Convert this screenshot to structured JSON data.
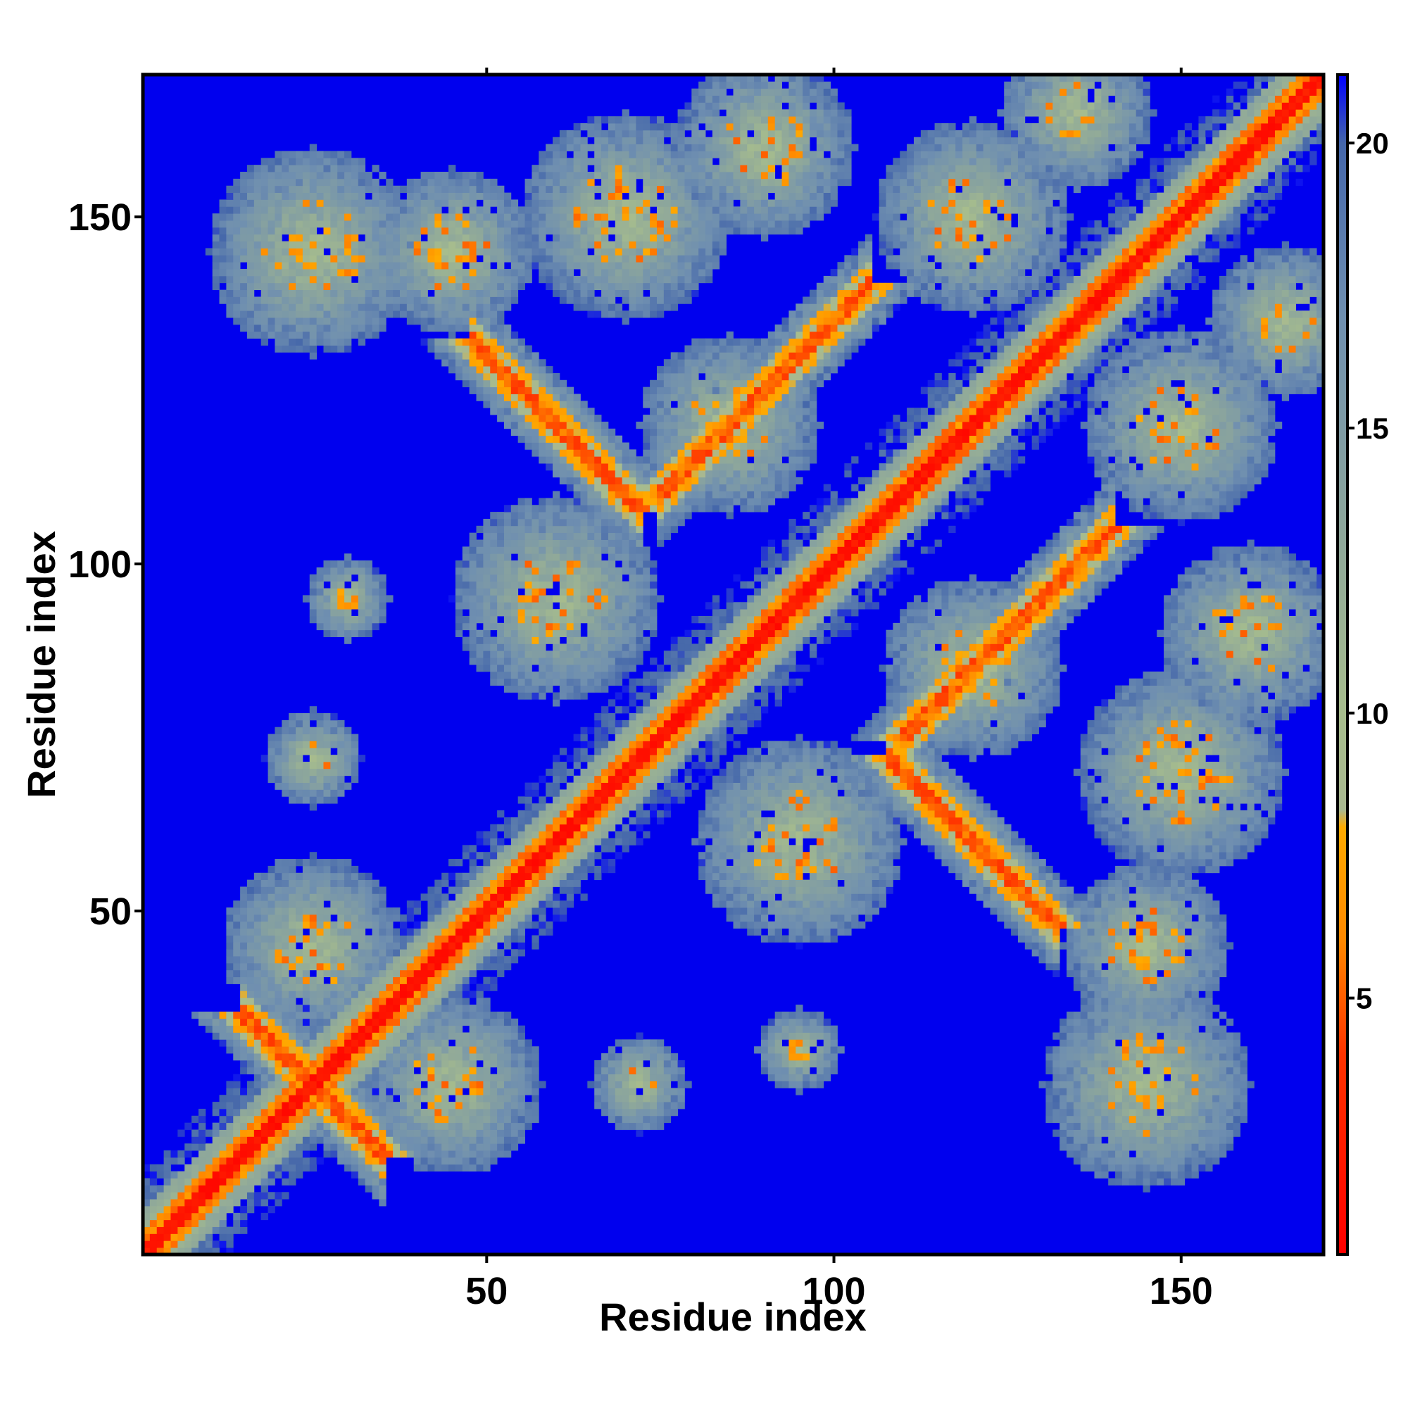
{
  "chart_data": {
    "type": "heatmap",
    "title": "",
    "xlabel": "Residue index",
    "ylabel": "Residue index",
    "n_residues": 170,
    "xlim": [
      1,
      170
    ],
    "ylim": [
      1,
      170
    ],
    "x_ticks": [
      50,
      100,
      150
    ],
    "y_ticks": [
      50,
      100,
      150
    ],
    "colorbar": {
      "ticks": [
        5,
        10,
        15,
        20
      ],
      "range": [
        0.5,
        21.2
      ],
      "stops": [
        {
          "value": 0.5,
          "color": "#ff0000"
        },
        {
          "value": 4.0,
          "color": "#ff3300"
        },
        {
          "value": 6.0,
          "color": "#ff8800"
        },
        {
          "value": 8.0,
          "color": "#ffaa00"
        },
        {
          "value": 8.3,
          "color": "#a8b890"
        },
        {
          "value": 10.0,
          "color": "#a7bd8d"
        },
        {
          "value": 13.0,
          "color": "#8fa89a"
        },
        {
          "value": 17.0,
          "color": "#6f8fb0"
        },
        {
          "value": 20.0,
          "color": "#4466aa"
        },
        {
          "value": 21.2,
          "color": "#0000ff"
        }
      ]
    },
    "background_value": 21,
    "background_color": "#0000ee",
    "contact_features": [
      {
        "kind": "diagonal",
        "from": 1,
        "to": 170,
        "width": 6
      },
      {
        "kind": "antiparallel",
        "center": [
          25,
          25
        ],
        "length": 10,
        "width": 3
      },
      {
        "kind": "antiparallel",
        "center": [
          60,
          120
        ],
        "length": 12,
        "width": 3
      },
      {
        "kind": "antiparallel",
        "center": [
          120,
          60
        ],
        "length": 12,
        "width": 3
      },
      {
        "kind": "parallel",
        "center": [
          90,
          125
        ],
        "length": 15,
        "width": 3
      },
      {
        "kind": "parallel",
        "center": [
          125,
          90
        ],
        "length": 15,
        "width": 3
      },
      {
        "kind": "cluster",
        "center": [
          25,
          145
        ],
        "radius": 12
      },
      {
        "kind": "cluster",
        "center": [
          145,
          25
        ],
        "radius": 12
      },
      {
        "kind": "cluster",
        "center": [
          45,
          145
        ],
        "radius": 9
      },
      {
        "kind": "cluster",
        "center": [
          145,
          45
        ],
        "radius": 9
      },
      {
        "kind": "cluster",
        "center": [
          70,
          150
        ],
        "radius": 12
      },
      {
        "kind": "cluster",
        "center": [
          150,
          70
        ],
        "radius": 12
      },
      {
        "kind": "cluster",
        "center": [
          85,
          120
        ],
        "radius": 10
      },
      {
        "kind": "cluster",
        "center": [
          120,
          85
        ],
        "radius": 10
      },
      {
        "kind": "cluster",
        "center": [
          60,
          95
        ],
        "radius": 12
      },
      {
        "kind": "cluster",
        "center": [
          95,
          60
        ],
        "radius": 12
      },
      {
        "kind": "cluster",
        "center": [
          45,
          25
        ],
        "radius": 10
      },
      {
        "kind": "cluster",
        "center": [
          25,
          45
        ],
        "radius": 10
      },
      {
        "kind": "cluster",
        "center": [
          90,
          160
        ],
        "radius": 10
      },
      {
        "kind": "cluster",
        "center": [
          160,
          90
        ],
        "radius": 10
      },
      {
        "kind": "cluster",
        "center": [
          150,
          120
        ],
        "radius": 11
      },
      {
        "kind": "cluster",
        "center": [
          120,
          150
        ],
        "radius": 11
      },
      {
        "kind": "cluster",
        "center": [
          165,
          135
        ],
        "radius": 8
      },
      {
        "kind": "cluster",
        "center": [
          135,
          165
        ],
        "radius": 8
      },
      {
        "kind": "cluster",
        "center": [
          72,
          25
        ],
        "radius": 4
      },
      {
        "kind": "cluster",
        "center": [
          25,
          72
        ],
        "radius": 4
      },
      {
        "kind": "cluster",
        "center": [
          95,
          30
        ],
        "radius": 3
      },
      {
        "kind": "cluster",
        "center": [
          30,
          95
        ],
        "radius": 3
      }
    ]
  }
}
